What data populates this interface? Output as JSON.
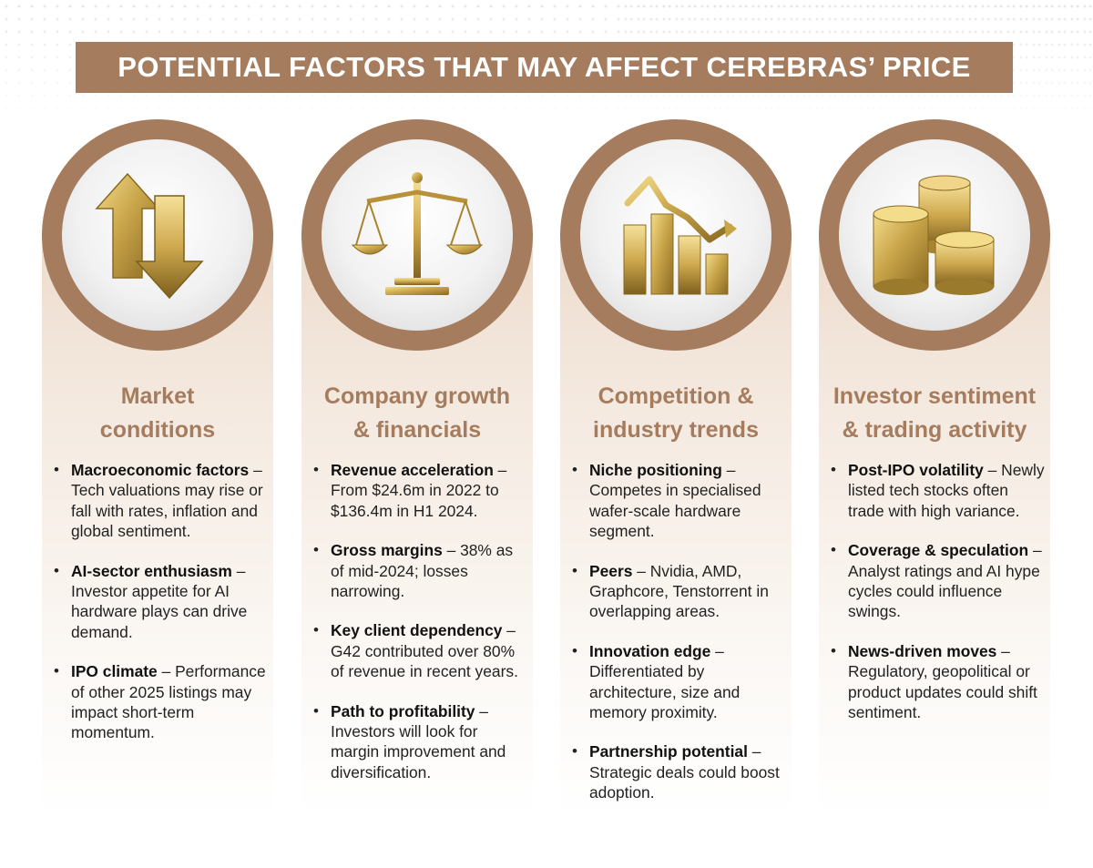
{
  "title": "POTENTIAL FACTORS THAT MAY AFFECT CEREBRAS’ PRICE",
  "colors": {
    "accent": "#a67c5e",
    "title_text": "#ffffff",
    "gold": "#c9a54a"
  },
  "columns": [
    {
      "icon": "up-down-arrows-icon",
      "title_lines": [
        "Market",
        "conditions"
      ],
      "items": [
        {
          "head": "Macroeconomic factors",
          "text": " – Tech valuations may rise or fall with rates, inflation and global sentiment."
        },
        {
          "head": "AI-sector enthusiasm",
          "text": " – Investor appetite for AI hardware plays can drive demand."
        },
        {
          "head": "IPO climate",
          "text": " – Performance of other 2025 listings may impact short-term momentum."
        }
      ]
    },
    {
      "icon": "balance-scale-icon",
      "title_lines": [
        "Company growth",
        "& financials"
      ],
      "items": [
        {
          "head": "Revenue acceleration",
          "text": " – From $24.6m in 2022 to $136.4m in H1 2024."
        },
        {
          "head": "Gross margins",
          "text": " – 38% as of mid-2024; losses narrowing."
        },
        {
          "head": "Key client dependency",
          "text": " – G42 contributed over 80% of revenue in recent years."
        },
        {
          "head": "Path to profitability",
          "text": " – Investors will look for margin improvement and diversification."
        }
      ]
    },
    {
      "icon": "bar-chart-decline-icon",
      "title_lines": [
        "Competition &",
        "industry trends"
      ],
      "items": [
        {
          "head": "Niche positioning",
          "text": " – Competes in specialised wafer-scale hardware segment."
        },
        {
          "head": "Peers",
          "text": " – Nvidia, AMD, Graphcore, Tenstorrent in overlapping areas."
        },
        {
          "head": "Innovation edge",
          "text": " – Differentiated by architecture, size and memory proximity."
        },
        {
          "head": "Partnership potential",
          "text": " – Strategic deals could boost adoption."
        }
      ]
    },
    {
      "icon": "coin-stacks-icon",
      "title_lines": [
        "Investor sentiment",
        "& trading activity"
      ],
      "items": [
        {
          "head": "Post-IPO volatility",
          "text": " – Newly listed tech stocks often trade with high variance."
        },
        {
          "head": "Coverage & speculation",
          "text": " – Analyst ratings and AI hype cycles could influence swings."
        },
        {
          "head": "News-driven moves",
          "text": " – Regulatory, geopolitical or product updates could shift sentiment."
        }
      ]
    }
  ]
}
